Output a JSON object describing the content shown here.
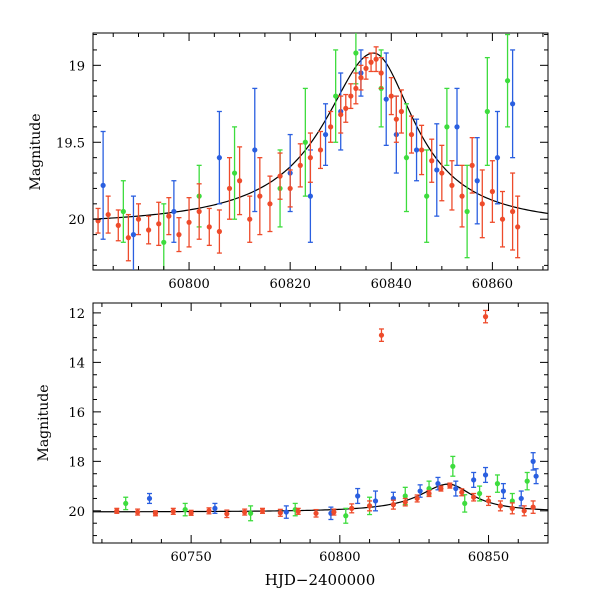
{
  "chart_data": [
    {
      "type": "scatter",
      "title": "",
      "xlabel": "",
      "ylabel": "Magnitude",
      "xlim": [
        60781,
        60871
      ],
      "ylim": [
        20.33,
        18.79
      ],
      "y_inverted": true,
      "grid": false,
      "x_ticks": [
        60800,
        60820,
        60840,
        60860
      ],
      "x_tick_labels": [
        "60800",
        "60820",
        "60840",
        "60860"
      ],
      "y_ticks": [
        19,
        19.5,
        20
      ],
      "y_tick_labels": [
        "19",
        "19.5",
        "20"
      ],
      "model_curve": {
        "color": "#000000",
        "description_free": true,
        "peak_time": 60836.5,
        "peak_mag": 18.92,
        "baseline_mag": 20.05,
        "rise_width": 12,
        "fall_width": 10
      },
      "series": [
        {
          "color": "#ee4b2b",
          "points": [
            [
              60782,
              20.01,
              0.08
            ],
            [
              60784,
              19.97,
              0.12
            ],
            [
              60786,
              20.04,
              0.1
            ],
            [
              60788,
              20.12,
              0.15
            ],
            [
              60790,
              20.0,
              0.1
            ],
            [
              60792,
              20.07,
              0.09
            ],
            [
              60794,
              20.03,
              0.14
            ],
            [
              60796,
              19.98,
              0.12
            ],
            [
              60798,
              20.1,
              0.11
            ],
            [
              60800,
              20.02,
              0.16
            ],
            [
              60802,
              19.95,
              0.18
            ],
            [
              60804,
              20.05,
              0.12
            ],
            [
              60806,
              20.08,
              0.14
            ],
            [
              60808,
              19.8,
              0.2
            ],
            [
              60810,
              19.75,
              0.22
            ],
            [
              60812,
              20.0,
              0.15
            ],
            [
              60814,
              19.85,
              0.25
            ],
            [
              60816,
              19.9,
              0.18
            ],
            [
              60818,
              19.72,
              0.15
            ],
            [
              60820,
              19.8,
              0.12
            ],
            [
              60822,
              19.65,
              0.14
            ],
            [
              60824,
              19.6,
              0.16
            ],
            [
              60826,
              19.55,
              0.12
            ],
            [
              60828,
              19.4,
              0.1
            ],
            [
              60830,
              19.32,
              0.12
            ],
            [
              60831,
              19.28,
              0.09
            ],
            [
              60832,
              19.2,
              0.08
            ],
            [
              60833,
              19.15,
              0.1
            ],
            [
              60834,
              19.08,
              0.08
            ],
            [
              60835,
              19.02,
              0.07
            ],
            [
              60836,
              18.98,
              0.06
            ],
            [
              60837,
              18.96,
              0.08
            ],
            [
              60838,
              19.05,
              0.1
            ],
            [
              60840,
              19.2,
              0.12
            ],
            [
              60841,
              19.35,
              0.15
            ],
            [
              60842,
              19.3,
              0.14
            ],
            [
              60844,
              19.45,
              0.12
            ],
            [
              60846,
              19.55,
              0.16
            ],
            [
              60848,
              19.62,
              0.14
            ],
            [
              60850,
              19.7,
              0.18
            ],
            [
              60852,
              19.78,
              0.16
            ],
            [
              60854,
              19.85,
              0.2
            ],
            [
              60856,
              19.65,
              0.18
            ],
            [
              60858,
              19.9,
              0.22
            ],
            [
              60860,
              19.82,
              0.2
            ],
            [
              60862,
              20.0,
              0.18
            ],
            [
              60864,
              19.95,
              0.25
            ],
            [
              60865,
              20.05,
              0.2
            ]
          ]
        },
        {
          "color": "#2a5fe0",
          "points": [
            [
              60783,
              19.78,
              0.35
            ],
            [
              60789,
              20.1,
              0.25
            ],
            [
              60797,
              19.95,
              0.2
            ],
            [
              60806,
              19.6,
              0.3
            ],
            [
              60813,
              19.55,
              0.4
            ],
            [
              60820,
              19.7,
              0.25
            ],
            [
              60824,
              19.85,
              0.3
            ],
            [
              60827,
              19.45,
              0.2
            ],
            [
              60830,
              19.3,
              0.25
            ],
            [
              60834,
              19.05,
              0.15
            ],
            [
              60839,
              19.22,
              0.3
            ],
            [
              60841,
              19.45,
              0.25
            ],
            [
              60845,
              19.55,
              0.2
            ],
            [
              60849,
              19.68,
              0.3
            ],
            [
              60853,
              19.4,
              0.25
            ],
            [
              60857,
              19.75,
              0.28
            ],
            [
              60861,
              19.6,
              0.3
            ],
            [
              60864,
              19.25,
              0.35
            ]
          ]
        },
        {
          "color": "#3ddc3d",
          "points": [
            [
              60787,
              19.95,
              0.2
            ],
            [
              60795,
              20.15,
              0.25
            ],
            [
              60802,
              19.85,
              0.2
            ],
            [
              60809,
              19.7,
              0.3
            ],
            [
              60818,
              19.8,
              0.25
            ],
            [
              60823,
              19.5,
              0.35
            ],
            [
              60829,
              19.2,
              0.3
            ],
            [
              60833,
              18.92,
              0.2
            ],
            [
              60838,
              19.15,
              0.25
            ],
            [
              60843,
              19.6,
              0.35
            ],
            [
              60847,
              19.85,
              0.3
            ],
            [
              60851,
              19.4,
              0.25
            ],
            [
              60855,
              19.95,
              0.3
            ],
            [
              60859,
              19.3,
              0.35
            ],
            [
              60863,
              19.1,
              0.3
            ]
          ]
        }
      ]
    },
    {
      "type": "scatter",
      "title": "",
      "xlabel": "HJD−2400000",
      "ylabel": "Magnitude",
      "xlim": [
        60717,
        60870
      ],
      "ylim": [
        21.3,
        11.6
      ],
      "y_inverted": true,
      "grid": false,
      "x_ticks": [
        60750,
        60800,
        60850
      ],
      "x_tick_labels": [
        "60750",
        "60800",
        "60850"
      ],
      "y_ticks": [
        12,
        14,
        16,
        18,
        20
      ],
      "y_tick_labels": [
        "12",
        "14",
        "16",
        "18",
        "20"
      ],
      "model_curve": {
        "color": "#000000",
        "peak_time": 60836.5,
        "peak_mag": 18.92,
        "baseline_mag": 20.05,
        "rise_width": 12,
        "fall_width": 10
      },
      "series": [
        {
          "color": "#ee4b2b",
          "points": [
            [
              60725,
              20.0,
              0.1
            ],
            [
              60732,
              20.05,
              0.12
            ],
            [
              60738,
              20.1,
              0.1
            ],
            [
              60744,
              20.02,
              0.12
            ],
            [
              60750,
              20.08,
              0.1
            ],
            [
              60756,
              20.0,
              0.12
            ],
            [
              60762,
              20.12,
              0.15
            ],
            [
              60768,
              20.05,
              0.12
            ],
            [
              60774,
              20.0,
              0.1
            ],
            [
              60780,
              20.08,
              0.14
            ],
            [
              60786,
              20.02,
              0.12
            ],
            [
              60792,
              20.1,
              0.15
            ],
            [
              60798,
              20.05,
              0.12
            ],
            [
              60804,
              19.9,
              0.18
            ],
            [
              60810,
              19.8,
              0.2
            ],
            [
              60814,
              12.9,
              0.25
            ],
            [
              60818,
              19.75,
              0.18
            ],
            [
              60822,
              19.65,
              0.15
            ],
            [
              60826,
              19.5,
              0.14
            ],
            [
              60830,
              19.3,
              0.12
            ],
            [
              60834,
              19.1,
              0.1
            ],
            [
              60837,
              18.98,
              0.1
            ],
            [
              60841,
              19.25,
              0.14
            ],
            [
              60845,
              19.45,
              0.15
            ],
            [
              60849,
              12.15,
              0.25
            ],
            [
              60850,
              19.6,
              0.18
            ],
            [
              60854,
              19.8,
              0.2
            ],
            [
              60858,
              19.9,
              0.22
            ],
            [
              60862,
              20.0,
              0.2
            ],
            [
              60865,
              19.85,
              0.25
            ]
          ]
        },
        {
          "color": "#2a5fe0",
          "points": [
            [
              60736,
              19.5,
              0.2
            ],
            [
              60758,
              19.9,
              0.2
            ],
            [
              60782,
              20.05,
              0.25
            ],
            [
              60797,
              20.1,
              0.25
            ],
            [
              60806,
              19.4,
              0.3
            ],
            [
              60812,
              19.6,
              0.4
            ],
            [
              60818,
              19.5,
              0.25
            ],
            [
              60827,
              19.2,
              0.25
            ],
            [
              60833,
              18.9,
              0.25
            ],
            [
              60839,
              19.1,
              0.3
            ],
            [
              60845,
              18.75,
              0.3
            ],
            [
              60849,
              18.55,
              0.3
            ],
            [
              60855,
              19.2,
              0.3
            ],
            [
              60861,
              19.5,
              0.3
            ],
            [
              60865,
              18.0,
              0.35
            ],
            [
              60866,
              18.6,
              0.3
            ]
          ]
        },
        {
          "color": "#3ddc3d",
          "points": [
            [
              60728,
              19.7,
              0.25
            ],
            [
              60748,
              19.95,
              0.25
            ],
            [
              60770,
              20.1,
              0.3
            ],
            [
              60785,
              19.95,
              0.25
            ],
            [
              60802,
              20.2,
              0.3
            ],
            [
              60810,
              19.8,
              0.35
            ],
            [
              60822,
              19.4,
              0.35
            ],
            [
              60830,
              19.1,
              0.3
            ],
            [
              60838,
              18.2,
              0.4
            ],
            [
              60842,
              19.7,
              0.35
            ],
            [
              60847,
              19.3,
              0.3
            ],
            [
              60853,
              18.9,
              0.35
            ],
            [
              60858,
              19.6,
              0.3
            ],
            [
              60863,
              18.8,
              0.35
            ]
          ]
        }
      ]
    }
  ]
}
